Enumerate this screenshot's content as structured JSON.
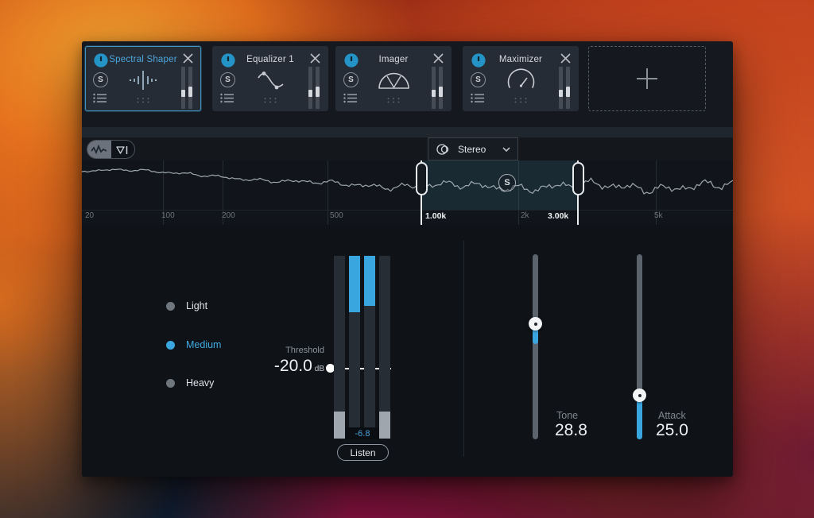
{
  "module_chain": {
    "solo_label": "S",
    "modules": [
      {
        "name": "Spectral Shaper",
        "selected": true
      },
      {
        "name": "Equalizer 1",
        "selected": false
      },
      {
        "name": "Imager",
        "selected": false
      },
      {
        "name": "Maximizer",
        "selected": false
      }
    ]
  },
  "analyzer": {
    "channel_selector": {
      "value": "Stereo"
    },
    "band": {
      "solo_label": "S"
    },
    "freq_ticks": [
      {
        "text": "20",
        "strong": false
      },
      {
        "text": "100",
        "strong": false
      },
      {
        "text": "200",
        "strong": false
      },
      {
        "text": "500",
        "strong": false
      },
      {
        "text": "1.00k",
        "strong": true
      },
      {
        "text": "2k",
        "strong": false
      },
      {
        "text": "3.00k",
        "strong": true
      },
      {
        "text": "5k",
        "strong": false
      }
    ]
  },
  "controls": {
    "intensity": {
      "options": [
        {
          "label": "Light",
          "selected": false
        },
        {
          "label": "Medium",
          "selected": true
        },
        {
          "label": "Heavy",
          "selected": false
        }
      ]
    },
    "threshold": {
      "label": "Threshold",
      "value": "-20.0",
      "unit": "dB"
    },
    "meter": {
      "readout": "-6.8"
    },
    "listen": {
      "label": "Listen"
    },
    "tone": {
      "label": "Tone",
      "value": "28.8"
    },
    "attack": {
      "label": "Attack",
      "value": "25.0"
    }
  },
  "colors": {
    "accent_blue": "#3aa6e0",
    "selected_border": "#3f93bd",
    "selected_title": "#4ba6db",
    "meter_gray_fill": "#a0a6ad",
    "value_text": "#eef1f3",
    "muted_text": "#8b9199",
    "window_bg": "#14171c",
    "card_bg": "#262c35"
  }
}
